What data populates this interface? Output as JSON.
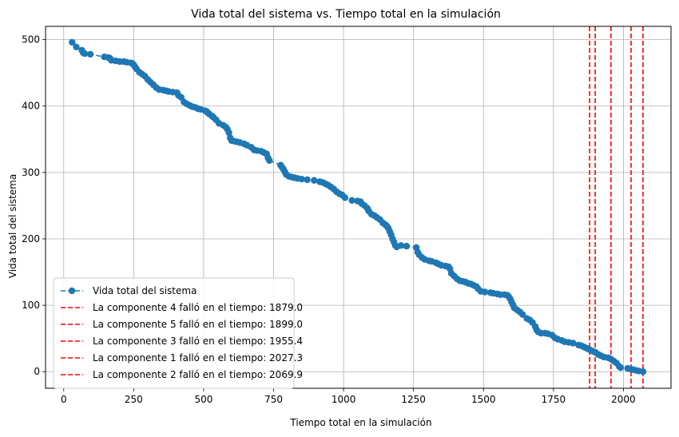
{
  "chart_data": {
    "type": "line",
    "title": "Vida total del sistema vs. Tiempo total en la simulación",
    "xlabel": "Tiempo total en la simulación",
    "ylabel": "Vida total del sistema",
    "xlim": [
      -65,
      2170
    ],
    "ylim": [
      -25,
      520
    ],
    "xticks": [
      0,
      250,
      500,
      750,
      1000,
      1250,
      1500,
      1750,
      2000
    ],
    "yticks": [
      0,
      100,
      200,
      300,
      400,
      500
    ],
    "grid": true,
    "legend_position": "lower-left",
    "series": [
      {
        "name": "Vida total del sistema",
        "color": "#1f77b4",
        "style": "dashed-line-with-circle-markers",
        "points": [
          [
            30,
            496
          ],
          [
            45,
            489
          ],
          [
            65,
            484
          ],
          [
            70,
            480
          ],
          [
            75,
            479
          ],
          [
            95,
            478
          ],
          [
            145,
            474
          ],
          [
            160,
            473
          ],
          [
            165,
            472
          ],
          [
            170,
            469
          ],
          [
            185,
            468
          ],
          [
            200,
            467
          ],
          [
            215,
            467
          ],
          [
            225,
            466
          ],
          [
            240,
            465
          ],
          [
            245,
            464
          ],
          [
            250,
            462
          ],
          [
            255,
            459
          ],
          [
            260,
            456
          ],
          [
            270,
            451
          ],
          [
            280,
            448
          ],
          [
            290,
            445
          ],
          [
            300,
            440
          ],
          [
            310,
            436
          ],
          [
            320,
            432
          ],
          [
            330,
            428
          ],
          [
            340,
            425
          ],
          [
            355,
            424
          ],
          [
            365,
            423
          ],
          [
            375,
            422
          ],
          [
            390,
            421
          ],
          [
            405,
            420
          ],
          [
            410,
            416
          ],
          [
            420,
            413
          ],
          [
            430,
            406
          ],
          [
            440,
            403
          ],
          [
            450,
            401
          ],
          [
            460,
            399
          ],
          [
            470,
            398
          ],
          [
            480,
            396
          ],
          [
            490,
            395
          ],
          [
            505,
            393
          ],
          [
            510,
            392
          ],
          [
            515,
            390
          ],
          [
            520,
            388
          ],
          [
            530,
            385
          ],
          [
            535,
            383
          ],
          [
            545,
            379
          ],
          [
            555,
            374
          ],
          [
            570,
            371
          ],
          [
            580,
            368
          ],
          [
            585,
            365
          ],
          [
            590,
            360
          ],
          [
            595,
            352
          ],
          [
            600,
            348
          ],
          [
            610,
            347
          ],
          [
            620,
            346
          ],
          [
            630,
            345
          ],
          [
            645,
            343
          ],
          [
            655,
            341
          ],
          [
            670,
            338
          ],
          [
            680,
            334
          ],
          [
            690,
            333
          ],
          [
            705,
            332
          ],
          [
            715,
            330
          ],
          [
            725,
            328
          ],
          [
            730,
            322
          ],
          [
            735,
            318
          ],
          [
            775,
            311
          ],
          [
            780,
            308
          ],
          [
            785,
            305
          ],
          [
            790,
            301
          ],
          [
            795,
            297
          ],
          [
            805,
            294
          ],
          [
            815,
            293
          ],
          [
            825,
            292
          ],
          [
            835,
            291
          ],
          [
            850,
            290
          ],
          [
            870,
            289
          ],
          [
            895,
            288
          ],
          [
            915,
            286
          ],
          [
            925,
            285
          ],
          [
            935,
            283
          ],
          [
            945,
            281
          ],
          [
            955,
            278
          ],
          [
            965,
            275
          ],
          [
            975,
            271
          ],
          [
            985,
            268
          ],
          [
            995,
            266
          ],
          [
            1005,
            262
          ],
          [
            1030,
            258
          ],
          [
            1050,
            257
          ],
          [
            1060,
            256
          ],
          [
            1065,
            253
          ],
          [
            1075,
            250
          ],
          [
            1085,
            246
          ],
          [
            1090,
            242
          ],
          [
            1100,
            237
          ],
          [
            1110,
            235
          ],
          [
            1120,
            232
          ],
          [
            1130,
            229
          ],
          [
            1140,
            224
          ],
          [
            1150,
            221
          ],
          [
            1155,
            219
          ],
          [
            1160,
            216
          ],
          [
            1165,
            211
          ],
          [
            1170,
            206
          ],
          [
            1175,
            200
          ],
          [
            1180,
            195
          ],
          [
            1185,
            190
          ],
          [
            1190,
            188
          ],
          [
            1205,
            190
          ],
          [
            1225,
            189
          ],
          [
            1260,
            187
          ],
          [
            1265,
            180
          ],
          [
            1270,
            176
          ],
          [
            1280,
            172
          ],
          [
            1290,
            169
          ],
          [
            1305,
            167
          ],
          [
            1315,
            166
          ],
          [
            1330,
            164
          ],
          [
            1340,
            162
          ],
          [
            1350,
            160
          ],
          [
            1365,
            159
          ],
          [
            1375,
            158
          ],
          [
            1380,
            155
          ],
          [
            1385,
            148
          ],
          [
            1395,
            144
          ],
          [
            1405,
            140
          ],
          [
            1415,
            137
          ],
          [
            1425,
            136
          ],
          [
            1435,
            135
          ],
          [
            1445,
            133
          ],
          [
            1455,
            132
          ],
          [
            1465,
            130
          ],
          [
            1475,
            128
          ],
          [
            1480,
            125
          ],
          [
            1490,
            121
          ],
          [
            1505,
            120
          ],
          [
            1525,
            119
          ],
          [
            1535,
            118
          ],
          [
            1550,
            117
          ],
          [
            1560,
            116
          ],
          [
            1575,
            116
          ],
          [
            1585,
            115
          ],
          [
            1590,
            113
          ],
          [
            1595,
            110
          ],
          [
            1600,
            105
          ],
          [
            1605,
            101
          ],
          [
            1610,
            96
          ],
          [
            1620,
            93
          ],
          [
            1630,
            90
          ],
          [
            1640,
            86
          ],
          [
            1655,
            80
          ],
          [
            1665,
            78
          ],
          [
            1675,
            74
          ],
          [
            1685,
            68
          ],
          [
            1690,
            63
          ],
          [
            1695,
            60
          ],
          [
            1705,
            58
          ],
          [
            1720,
            58
          ],
          [
            1730,
            57
          ],
          [
            1745,
            55
          ],
          [
            1755,
            51
          ],
          [
            1765,
            49
          ],
          [
            1780,
            47
          ],
          [
            1790,
            45
          ],
          [
            1805,
            44
          ],
          [
            1820,
            43
          ],
          [
            1840,
            40
          ],
          [
            1850,
            39
          ],
          [
            1860,
            37
          ],
          [
            1870,
            35
          ],
          [
            1880,
            33
          ],
          [
            1890,
            31
          ],
          [
            1900,
            29
          ],
          [
            1910,
            26
          ],
          [
            1920,
            24
          ],
          [
            1930,
            22
          ],
          [
            1945,
            21
          ],
          [
            1955,
            19
          ],
          [
            1965,
            16
          ],
          [
            1975,
            13
          ],
          [
            1985,
            8
          ],
          [
            1990,
            6
          ],
          [
            2015,
            5
          ],
          [
            2025,
            4
          ],
          [
            2035,
            3
          ],
          [
            2045,
            2
          ],
          [
            2055,
            1
          ],
          [
            2070,
            0
          ]
        ]
      }
    ],
    "reference_lines": [
      {
        "x": 1879.0,
        "label": "La componente 4 falló en el tiempo: 1879.0",
        "color": "#ff0000"
      },
      {
        "x": 1899.0,
        "label": "La componente 5 falló en el tiempo: 1899.0",
        "color": "#ff0000"
      },
      {
        "x": 1955.4,
        "label": "La componente 3 falló en el tiempo: 1955.4",
        "color": "#ff0000"
      },
      {
        "x": 2027.3,
        "label": "La componente 1 falló en el tiempo: 2027.3",
        "color": "#ff0000"
      },
      {
        "x": 2069.9,
        "label": "La componente 2 falló en el tiempo: 2069.9",
        "color": "#ff0000"
      }
    ]
  }
}
